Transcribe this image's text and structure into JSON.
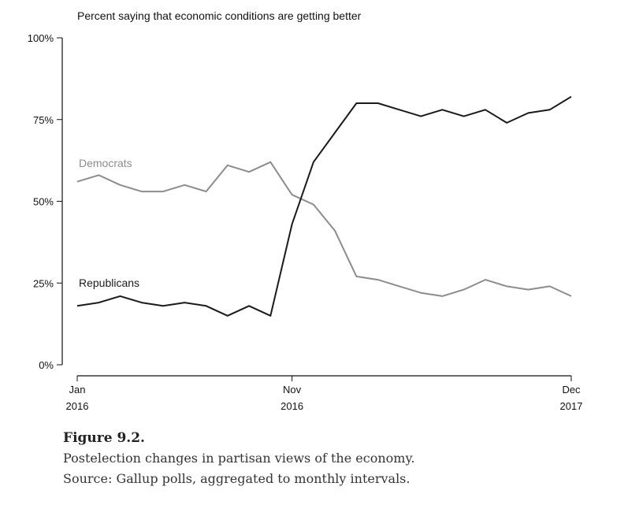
{
  "chart_data": {
    "type": "line",
    "title": "Percent saying that economic conditions are getting better",
    "xlabel": "",
    "ylabel": "",
    "ylim": [
      0,
      100
    ],
    "y_ticks": [
      "0%",
      "25%",
      "50%",
      "75%",
      "100%"
    ],
    "y_tick_values": [
      0,
      25,
      50,
      75,
      100
    ],
    "x_ticks": [
      {
        "month_index": 0,
        "label1": "Jan",
        "label2": "2016"
      },
      {
        "month_index": 10,
        "label1": "Nov",
        "label2": "2016"
      },
      {
        "month_index": 23,
        "label1": "Dec",
        "label2": "2017"
      }
    ],
    "x": [
      "2016-01",
      "2016-02",
      "2016-03",
      "2016-04",
      "2016-05",
      "2016-06",
      "2016-07",
      "2016-08",
      "2016-09",
      "2016-10",
      "2016-11",
      "2016-12",
      "2017-01",
      "2017-02",
      "2017-03",
      "2017-04",
      "2017-05",
      "2017-06",
      "2017-07",
      "2017-08",
      "2017-09",
      "2017-10",
      "2017-11",
      "2017-12"
    ],
    "series": [
      {
        "name": "Democrats",
        "color": "#8c8c8c",
        "values": [
          56,
          58,
          55,
          53,
          53,
          55,
          53,
          61,
          59,
          62,
          52,
          49,
          41,
          27,
          26,
          24,
          22,
          21,
          23,
          26,
          24,
          23,
          24,
          21
        ]
      },
      {
        "name": "Republicans",
        "color": "#1a1a1a",
        "values": [
          18,
          19,
          21,
          19,
          18,
          19,
          18,
          15,
          18,
          15,
          43,
          62,
          71,
          80,
          80,
          78,
          76,
          78,
          76,
          78,
          74,
          77,
          78,
          82
        ]
      }
    ],
    "grid": false,
    "legend": "inline labels"
  },
  "caption": {
    "figure_label": "Figure 9.2.",
    "description": "Postelection changes in partisan views of the economy.",
    "source": "Source: Gallup polls, aggregated to monthly intervals."
  }
}
